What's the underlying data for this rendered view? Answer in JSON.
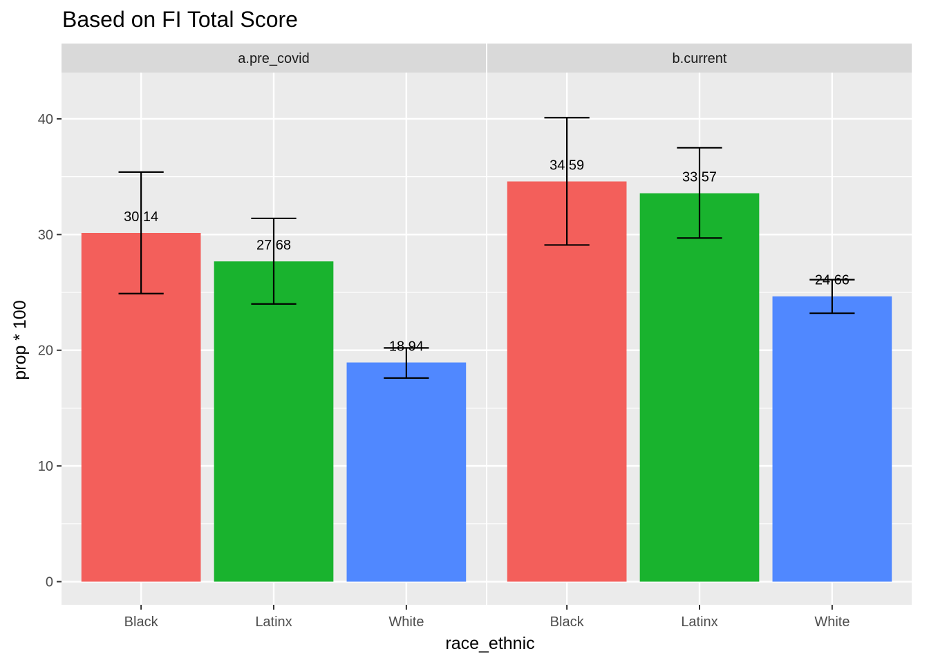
{
  "chart_data": {
    "type": "bar",
    "title": "Based on FI Total Score",
    "xlabel": "race_ethnic",
    "ylabel": "prop * 100",
    "ylim": [
      -2,
      44
    ],
    "yticks": [
      0,
      10,
      20,
      30,
      40
    ],
    "grid": true,
    "legend": "none",
    "categories": [
      "Black",
      "Latinx",
      "White"
    ],
    "colors": {
      "Black": "#F35F5B",
      "Latinx": "#19B32E",
      "White": "#5088FF"
    },
    "panels": [
      {
        "name": "a.pre_covid",
        "values": [
          30.14,
          27.68,
          18.94
        ],
        "labels": [
          "30.14",
          "27.68",
          "18.94"
        ],
        "error_low": [
          24.9,
          24.0,
          17.6
        ],
        "error_high": [
          35.4,
          31.4,
          20.2
        ]
      },
      {
        "name": "b.current",
        "values": [
          34.59,
          33.57,
          24.66
        ],
        "labels": [
          "34.59",
          "33.57",
          "24.66"
        ],
        "error_low": [
          29.1,
          29.7,
          23.2
        ],
        "error_high": [
          40.1,
          37.5,
          26.1
        ]
      }
    ]
  }
}
